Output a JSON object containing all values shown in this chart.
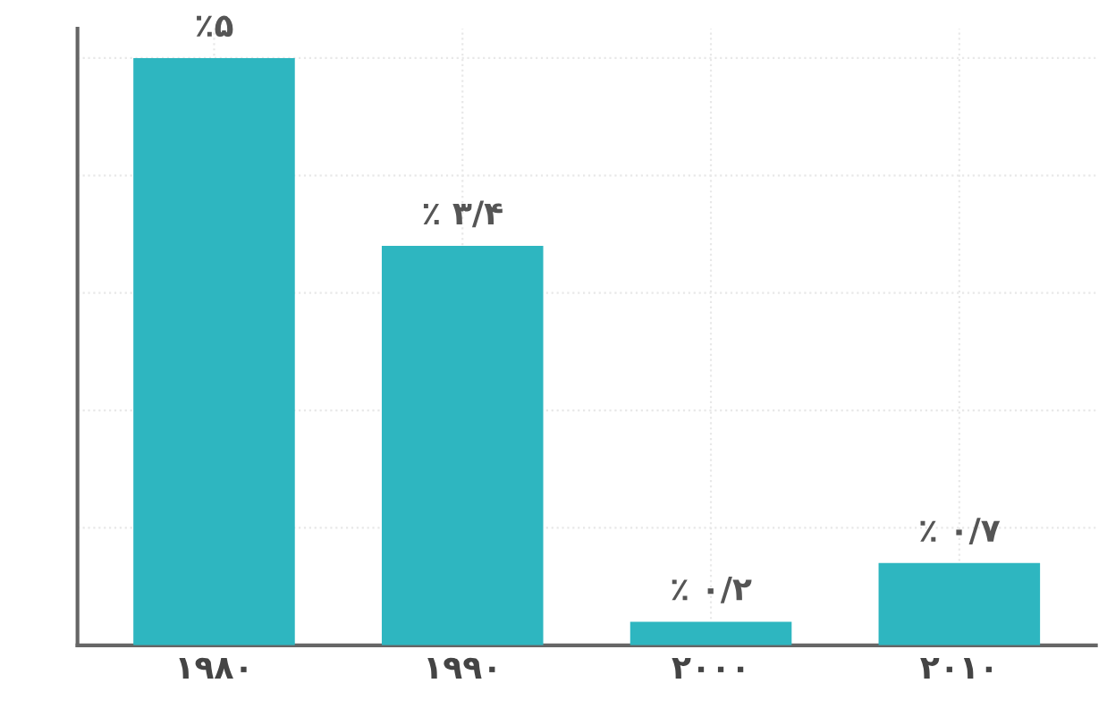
{
  "chart_data": {
    "type": "bar",
    "categories": [
      "۱۹۸۰",
      "۱۹۹۰",
      "۲۰۰۰",
      "۲۰۱۰"
    ],
    "values": [
      5,
      3.4,
      0.2,
      0.7
    ],
    "value_labels": [
      "٪۵",
      "٪ ۳/۴",
      "٪ ۰/۲",
      "٪ ۰/۷"
    ],
    "color": "#2eb6c0",
    "grid": true,
    "tick_labels": "x"
  }
}
